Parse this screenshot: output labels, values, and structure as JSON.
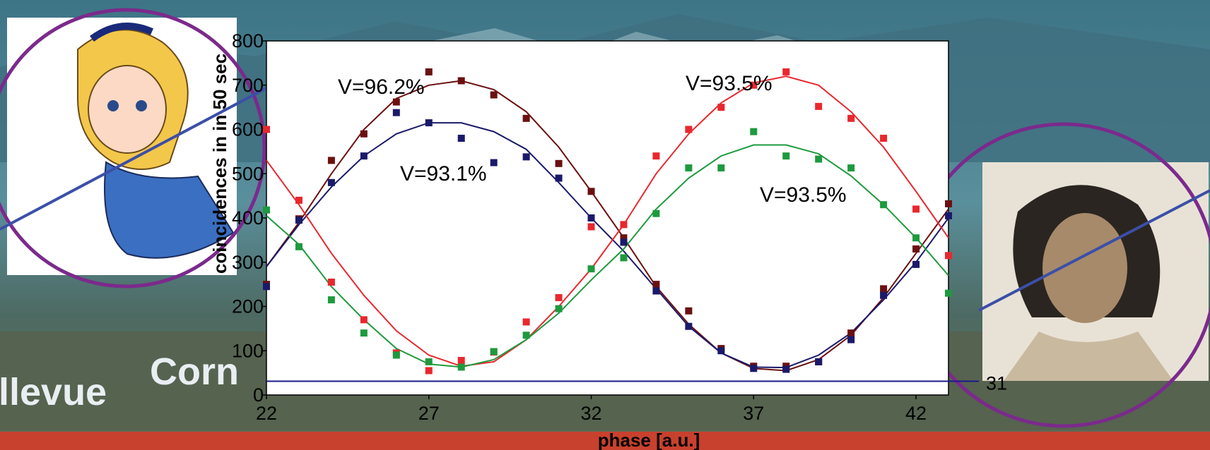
{
  "background": {
    "words": [
      "llevue",
      "Corn"
    ],
    "colors": {
      "sky": "#4f7f8f",
      "mountain": "#3a6577",
      "valley": "#4d5f4f",
      "band": "#c8412e"
    }
  },
  "portraits": [
    {
      "name": "alice-portrait",
      "ring_color": "#7b2a8c"
    },
    {
      "name": "bob-portrait",
      "ring_color": "#7b2a8c"
    }
  ],
  "baseline_label": "31",
  "chart_data": {
    "type": "scatter",
    "xlabel": "phase [a.u.]",
    "ylabel": "coincidences in in 50 sec",
    "xlim": [
      22,
      43
    ],
    "ylim": [
      0,
      800
    ],
    "x_ticks": [
      "22",
      "27",
      "32",
      "37",
      "42"
    ],
    "y_ticks": [
      "0",
      "100",
      "200",
      "300",
      "400",
      "500",
      "600",
      "700",
      "800"
    ],
    "grid": false,
    "baseline": 31,
    "annotations": [
      {
        "text": "V=96.2%",
        "series": "brown"
      },
      {
        "text": "V=93.1%",
        "series": "navy"
      },
      {
        "text": "V=93.5%",
        "series": "red"
      },
      {
        "text": "V=93.5%",
        "series": "green"
      }
    ],
    "series": [
      {
        "key": "brown",
        "color": "#6b1010",
        "x": [
          22,
          23,
          24,
          25,
          26,
          27,
          28,
          29,
          30,
          31,
          32,
          33,
          34,
          35,
          36,
          37,
          38,
          39,
          40,
          41,
          42,
          43
        ],
        "points": [
          250,
          398,
          530,
          590,
          662,
          730,
          710,
          678,
          625,
          523,
          460,
          355,
          250,
          190,
          105,
          65,
          65,
          75,
          140,
          240,
          330,
          432
        ],
        "fit": [
          290,
          390,
          500,
          600,
          670,
          700,
          710,
          690,
          640,
          560,
          460,
          355,
          245,
          160,
          95,
          60,
          55,
          80,
          135,
          220,
          320,
          420
        ]
      },
      {
        "key": "navy",
        "color": "#1a1a6a",
        "x": [
          22,
          23,
          24,
          25,
          26,
          27,
          28,
          29,
          30,
          31,
          32,
          33,
          34,
          35,
          36,
          37,
          38,
          39,
          40,
          41,
          42,
          43
        ],
        "points": [
          245,
          395,
          480,
          540,
          638,
          615,
          580,
          525,
          538,
          490,
          400,
          345,
          235,
          155,
          100,
          60,
          58,
          75,
          125,
          225,
          295,
          405
        ],
        "fit": [
          290,
          385,
          470,
          540,
          590,
          615,
          615,
          595,
          555,
          480,
          400,
          325,
          240,
          155,
          95,
          63,
          62,
          90,
          140,
          215,
          300,
          400
        ]
      },
      {
        "key": "red",
        "color": "#e8282e",
        "x": [
          22,
          23,
          24,
          25,
          26,
          27,
          28,
          29,
          30,
          31,
          32,
          33,
          34,
          35,
          36,
          37,
          38,
          39,
          40,
          41,
          42,
          43
        ],
        "points": [
          600,
          440,
          255,
          170,
          95,
          55,
          78,
          97,
          165,
          220,
          380,
          385,
          540,
          600,
          650,
          700,
          730,
          652,
          625,
          580,
          420,
          315
        ],
        "fit": [
          530,
          430,
          320,
          225,
          145,
          90,
          65,
          75,
          125,
          200,
          285,
          385,
          500,
          590,
          660,
          705,
          720,
          700,
          640,
          560,
          460,
          355
        ]
      },
      {
        "key": "green",
        "color": "#1e9a3e",
        "x": [
          22,
          23,
          24,
          25,
          26,
          27,
          28,
          29,
          30,
          31,
          32,
          33,
          34,
          35,
          36,
          37,
          38,
          39,
          40,
          41,
          42,
          43
        ],
        "points": [
          418,
          335,
          215,
          140,
          90,
          75,
          63,
          98,
          135,
          195,
          285,
          310,
          410,
          513,
          513,
          595,
          540,
          533,
          513,
          430,
          355,
          230
        ],
        "fit": [
          405,
          340,
          245,
          170,
          105,
          70,
          63,
          80,
          125,
          185,
          260,
          330,
          420,
          490,
          540,
          565,
          565,
          545,
          495,
          430,
          355,
          270
        ]
      }
    ]
  }
}
